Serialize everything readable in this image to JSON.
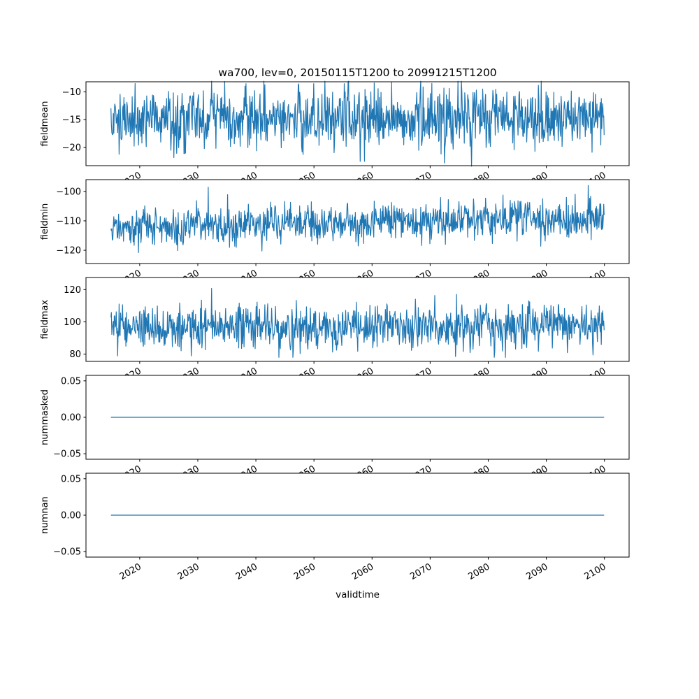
{
  "chart_data": {
    "type": "line",
    "title": "wa700, lev=0, 20150115T1200 to 20991215T1200",
    "xlabel": "validtime",
    "x_start": 2015.04,
    "x_end": 2099.96,
    "n_points": 1020,
    "xlim": [
      2010.75,
      2104.25
    ],
    "xticks": [
      2020,
      2030,
      2040,
      2050,
      2060,
      2070,
      2080,
      2090,
      2100
    ],
    "line_color": "#1f77b4",
    "grid": false,
    "legend": "none",
    "panels": [
      {
        "ylabel": "fieldmean",
        "ylim": [
          -23.3,
          -8.2
        ],
        "yticks": [
          -10,
          -15,
          -20
        ],
        "series": {
          "kind": "noise",
          "mean": -14.8,
          "std": 2.7,
          "min": -23.4,
          "max": -8.1,
          "seed": 1337,
          "trend": 0
        }
      },
      {
        "ylabel": "fieldmin",
        "ylim": [
          -124.5,
          -96.0
        ],
        "yticks": [
          -100,
          -110,
          -120
        ],
        "series": {
          "kind": "noise",
          "mean": -110.5,
          "std": 3.4,
          "min": -123.5,
          "max": -97.0,
          "seed": 4242,
          "trend": 3
        }
      },
      {
        "ylabel": "fieldmax",
        "ylim": [
          75.5,
          127.5
        ],
        "yticks": [
          120,
          100,
          80
        ],
        "series": {
          "kind": "noise",
          "mean": 97.0,
          "std": 6.8,
          "min": 78.0,
          "max": 125.5,
          "seed": 777,
          "trend": 0
        }
      },
      {
        "ylabel": "nummasked",
        "ylim": [
          -0.0575,
          0.0575
        ],
        "yticks": [
          0.05,
          0.0,
          -0.05
        ],
        "series": {
          "kind": "const",
          "value": 0
        }
      },
      {
        "ylabel": "numnan",
        "ylim": [
          -0.0575,
          0.0575
        ],
        "yticks": [
          0.05,
          0.0,
          -0.05
        ],
        "series": {
          "kind": "const",
          "value": 0
        }
      }
    ]
  }
}
